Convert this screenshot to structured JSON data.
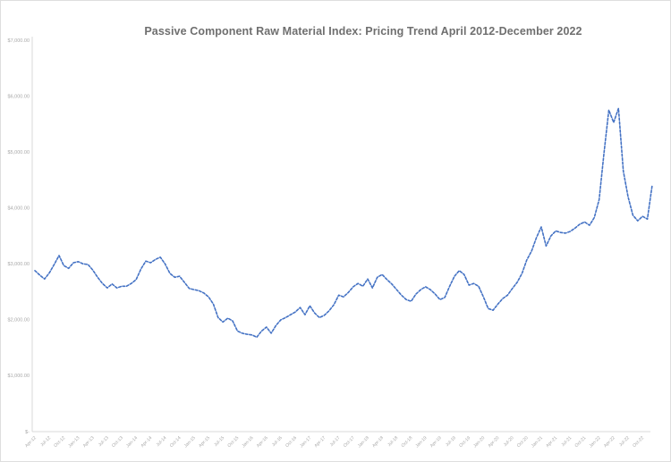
{
  "title": "Passive Component Raw Material Index: Pricing Trend April 2012-December 2022",
  "colors": {
    "line": "#4472C4",
    "title_text": "#6f6f6f",
    "axis_line": "#d9d9d9",
    "tick_label": "#a8a8a8"
  },
  "chart_data": {
    "type": "line",
    "title": "Passive Component Raw Material Index: Pricing Trend April 2012-December 2022",
    "xlabel": "",
    "ylabel": "",
    "grid": false,
    "legend": "none",
    "line_style": "dashed",
    "ylim": [
      0,
      7000
    ],
    "y_ticks": {
      "values": [
        7000,
        6000,
        5000,
        4000,
        3000,
        2000,
        1000,
        0
      ],
      "labels": [
        "$7,000.00",
        "$6,000.00",
        "$5,000.00",
        "$4,000.00",
        "$3,000.00",
        "$2,000.00",
        "$1,000.00",
        "$-"
      ]
    },
    "x_tick_labels": [
      "Apr-12",
      "Jul-12",
      "Oct-12",
      "Jan-13",
      "Apr-13",
      "Jul-13",
      "Oct-13",
      "Jan-14",
      "Apr-14",
      "Jul-14",
      "Oct-14",
      "Jan-15",
      "Apr-15",
      "Jul-15",
      "Oct-15",
      "Jan-16",
      "Apr-16",
      "Jul-16",
      "Oct-16",
      "Jan-17",
      "Apr-17",
      "Jul-17",
      "Oct-17",
      "Jan-18",
      "Apr-18",
      "Jul-18",
      "Oct-18",
      "Jan-19",
      "Apr-19",
      "Jul-19",
      "Oct-19",
      "Jan-20",
      "Apr-20",
      "Jul-20",
      "Oct-20",
      "Jan-21",
      "Apr-21",
      "Jul-21",
      "Oct-21",
      "Jan-22",
      "Apr-22",
      "Jul-22",
      "Oct-22"
    ],
    "x": [
      "Apr-12",
      "May-12",
      "Jun-12",
      "Jul-12",
      "Aug-12",
      "Sep-12",
      "Oct-12",
      "Nov-12",
      "Dec-12",
      "Jan-13",
      "Feb-13",
      "Mar-13",
      "Apr-13",
      "May-13",
      "Jun-13",
      "Jul-13",
      "Aug-13",
      "Sep-13",
      "Oct-13",
      "Nov-13",
      "Dec-13",
      "Jan-14",
      "Feb-14",
      "Mar-14",
      "Apr-14",
      "May-14",
      "Jun-14",
      "Jul-14",
      "Aug-14",
      "Sep-14",
      "Oct-14",
      "Nov-14",
      "Dec-14",
      "Jan-15",
      "Feb-15",
      "Mar-15",
      "Apr-15",
      "May-15",
      "Jun-15",
      "Jul-15",
      "Aug-15",
      "Sep-15",
      "Oct-15",
      "Nov-15",
      "Dec-15",
      "Jan-16",
      "Feb-16",
      "Mar-16",
      "Apr-16",
      "May-16",
      "Jun-16",
      "Jul-16",
      "Aug-16",
      "Sep-16",
      "Oct-16",
      "Nov-16",
      "Dec-16",
      "Jan-17",
      "Feb-17",
      "Mar-17",
      "Apr-17",
      "May-17",
      "Jun-17",
      "Jul-17",
      "Aug-17",
      "Sep-17",
      "Oct-17",
      "Nov-17",
      "Dec-17",
      "Jan-18",
      "Feb-18",
      "Mar-18",
      "Apr-18",
      "May-18",
      "Jun-18",
      "Jul-18",
      "Aug-18",
      "Sep-18",
      "Oct-18",
      "Nov-18",
      "Dec-18",
      "Jan-19",
      "Feb-19",
      "Mar-19",
      "Apr-19",
      "May-19",
      "Jun-19",
      "Jul-19",
      "Aug-19",
      "Sep-19",
      "Oct-19",
      "Nov-19",
      "Dec-19",
      "Jan-20",
      "Feb-20",
      "Mar-20",
      "Apr-20",
      "May-20",
      "Jun-20",
      "Jul-20",
      "Aug-20",
      "Sep-20",
      "Oct-20",
      "Nov-20",
      "Dec-20",
      "Jan-21",
      "Feb-21",
      "Mar-21",
      "Apr-21",
      "May-21",
      "Jun-21",
      "Jul-21",
      "Aug-21",
      "Sep-21",
      "Oct-21",
      "Nov-21",
      "Dec-21",
      "Jan-22",
      "Feb-22",
      "Mar-22",
      "Apr-22",
      "May-22",
      "Jun-22",
      "Jul-22",
      "Aug-22",
      "Sep-22",
      "Oct-22",
      "Nov-22",
      "Dec-22"
    ],
    "values": [
      2880,
      2800,
      2730,
      2840,
      2990,
      3150,
      2970,
      2920,
      3020,
      3040,
      3000,
      2990,
      2890,
      2760,
      2650,
      2570,
      2640,
      2570,
      2600,
      2600,
      2650,
      2720,
      2910,
      3050,
      3020,
      3080,
      3120,
      3000,
      2830,
      2760,
      2780,
      2670,
      2560,
      2540,
      2520,
      2480,
      2410,
      2280,
      2040,
      1960,
      2030,
      1980,
      1800,
      1760,
      1740,
      1730,
      1690,
      1800,
      1870,
      1760,
      1900,
      2000,
      2040,
      2090,
      2140,
      2220,
      2090,
      2250,
      2120,
      2040,
      2080,
      2160,
      2270,
      2440,
      2410,
      2490,
      2590,
      2650,
      2600,
      2730,
      2570,
      2760,
      2810,
      2720,
      2640,
      2540,
      2440,
      2360,
      2330,
      2460,
      2540,
      2590,
      2540,
      2460,
      2360,
      2400,
      2600,
      2780,
      2880,
      2810,
      2620,
      2650,
      2600,
      2410,
      2200,
      2170,
      2280,
      2380,
      2440,
      2560,
      2670,
      2830,
      3070,
      3230,
      3470,
      3660,
      3320,
      3500,
      3590,
      3560,
      3550,
      3580,
      3640,
      3710,
      3750,
      3690,
      3830,
      4150,
      4980,
      5750,
      5530,
      5780,
      4660,
      4200,
      3870,
      3770,
      3850,
      3800,
      4410
    ]
  }
}
